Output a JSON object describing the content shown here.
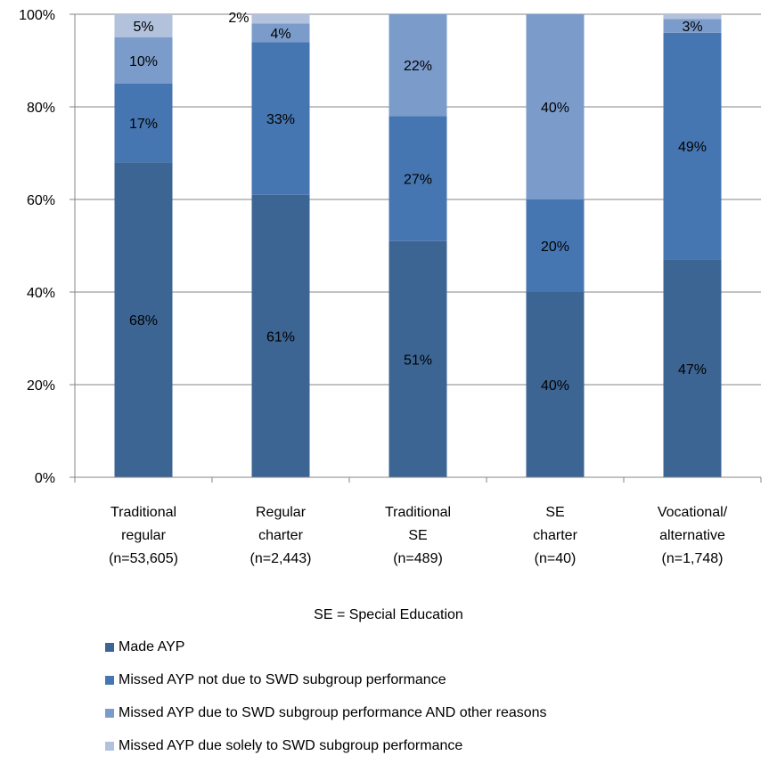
{
  "chart_data": {
    "type": "bar",
    "stacked": true,
    "categories": [
      [
        "Traditional",
        "regular",
        "(n=53,605)"
      ],
      [
        "Regular",
        "charter",
        "(n=2,443)"
      ],
      [
        "Traditional",
        "SE",
        "(n=489)"
      ],
      [
        "SE",
        "charter",
        "(n=40)"
      ],
      [
        "Vocational/",
        "alternative",
        "(n=1,748)"
      ]
    ],
    "series": [
      {
        "name": "Made AYP",
        "color": "#3c6594",
        "values": [
          68,
          61,
          51,
          40,
          47
        ],
        "labels": [
          "68%",
          "61%",
          "51%",
          "40%",
          "47%"
        ]
      },
      {
        "name": "Missed AYP not due to SWD subgroup performance",
        "color": "#4676b1",
        "values": [
          17,
          33,
          27,
          20,
          49
        ],
        "labels": [
          "17%",
          "33%",
          "27%",
          "20%",
          "49%"
        ]
      },
      {
        "name": "Missed AYP due to SWD subgroup performance AND other reasons",
        "color": "#7b9ccb",
        "values": [
          10,
          4,
          22,
          40,
          3
        ],
        "labels": [
          "10%",
          "4%",
          "22%",
          "40%",
          "3%"
        ]
      },
      {
        "name": "Missed AYP due solely to SWD subgroup performance",
        "color": "#b2c1dc",
        "values": [
          5,
          2,
          0,
          0,
          1
        ],
        "labels": [
          "5%",
          "2%",
          "",
          "",
          ""
        ]
      }
    ],
    "yticks": [
      "0%",
      "20%",
      "40%",
      "60%",
      "80%",
      "100%"
    ],
    "ylim": [
      0,
      100
    ],
    "grid": true,
    "legend_position": "bottom",
    "note": "SE = Special Education"
  }
}
